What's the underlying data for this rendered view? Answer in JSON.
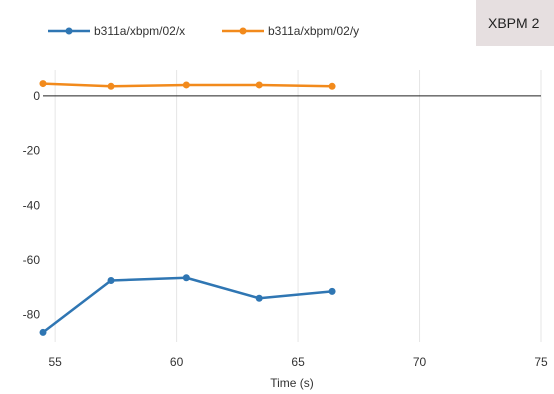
{
  "badge": {
    "text": "XBPM 2"
  },
  "chart_data": {
    "type": "line",
    "xlabel": "Time (s)",
    "ylabel": "",
    "xlim": [
      54.5,
      75
    ],
    "ylim": [
      -90,
      8
    ],
    "x_ticks": [
      55,
      60,
      65,
      70,
      75
    ],
    "y_ticks": [
      0,
      -20,
      -40,
      -60,
      -80
    ],
    "grid": {
      "vertical": true,
      "horizontal": false
    },
    "zero_line": true,
    "legend_position": "top-left",
    "series": [
      {
        "name": "b311a/xbpm/02/x",
        "color": "#2f76b3",
        "x": [
          54.5,
          57.3,
          60.4,
          63.4,
          66.4
        ],
        "y": [
          -86.5,
          -67.5,
          -66.5,
          -74,
          -71.5
        ]
      },
      {
        "name": "b311a/xbpm/02/y",
        "color": "#f28a1c",
        "x": [
          54.5,
          57.3,
          60.4,
          63.4,
          66.4
        ],
        "y": [
          4.5,
          3.5,
          4,
          4,
          3.5
        ]
      }
    ]
  }
}
